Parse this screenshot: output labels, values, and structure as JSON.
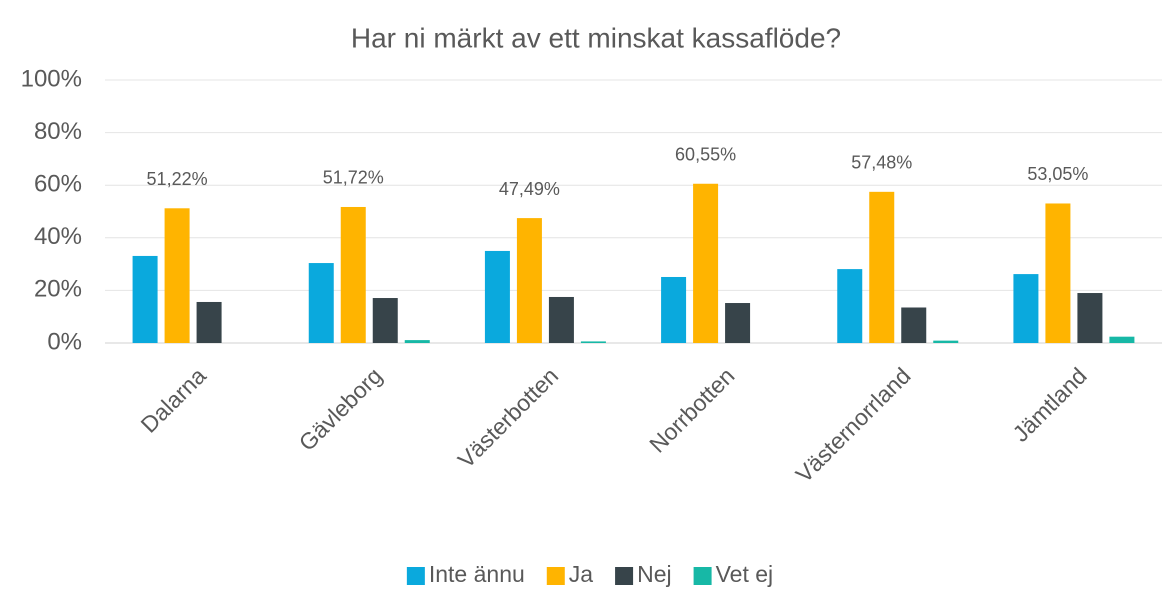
{
  "chart_data": {
    "type": "bar",
    "title": "Har ni märkt av ett minskat kassaflöde?",
    "categories": [
      "Dalarna",
      "Gävleborg",
      "Västerbotten",
      "Norrbotten",
      "Västernorrland",
      "Jämtland"
    ],
    "series": [
      {
        "name": "Inte ännu",
        "color": "#0aa9dd",
        "values": [
          33.1,
          30.4,
          35.0,
          25.1,
          28.1,
          26.2
        ]
      },
      {
        "name": "Ja",
        "color": "#ffb400",
        "values": [
          51.22,
          51.72,
          47.49,
          60.55,
          57.48,
          53.05
        ],
        "value_labels": [
          "51,22%",
          "51,72%",
          "47,49%",
          "60,55%",
          "57,48%",
          "53,05%"
        ]
      },
      {
        "name": "Nej",
        "color": "#37444a",
        "values": [
          15.6,
          17.1,
          17.5,
          15.2,
          13.5,
          19.0
        ]
      },
      {
        "name": "Vet ej",
        "color": "#17b8a6",
        "values": [
          0,
          1.1,
          0.6,
          0,
          0.9,
          2.4
        ]
      }
    ],
    "ylim": [
      0,
      100
    ],
    "yticks": [
      {
        "value": 0,
        "label": "0%"
      },
      {
        "value": 20,
        "label": "20%"
      },
      {
        "value": 40,
        "label": "40%"
      },
      {
        "value": 60,
        "label": "60%"
      },
      {
        "value": 80,
        "label": "80%"
      },
      {
        "value": 100,
        "label": "100%"
      }
    ],
    "grid": true,
    "legend": "bottom"
  }
}
